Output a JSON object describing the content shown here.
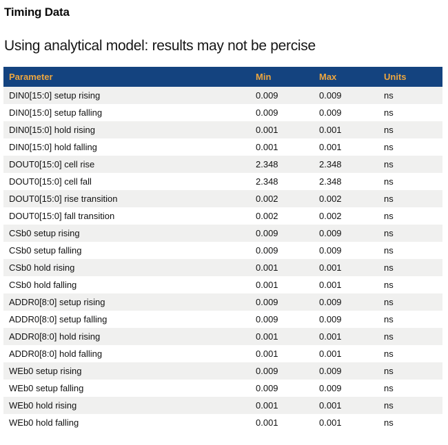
{
  "page": {
    "title": "Timing Data",
    "subtitle": "Using analytical model: results may not be percise"
  },
  "table": {
    "columns": [
      "Parameter",
      "Min",
      "Max",
      "Units"
    ],
    "rows": [
      {
        "parameter": "DIN0[15:0] setup rising",
        "min": "0.009",
        "max": "0.009",
        "units": "ns"
      },
      {
        "parameter": "DIN0[15:0] setup falling",
        "min": "0.009",
        "max": "0.009",
        "units": "ns"
      },
      {
        "parameter": "DIN0[15:0] hold rising",
        "min": "0.001",
        "max": "0.001",
        "units": "ns"
      },
      {
        "parameter": "DIN0[15:0] hold falling",
        "min": "0.001",
        "max": "0.001",
        "units": "ns"
      },
      {
        "parameter": "DOUT0[15:0] cell rise",
        "min": "2.348",
        "max": "2.348",
        "units": "ns"
      },
      {
        "parameter": "DOUT0[15:0] cell fall",
        "min": "2.348",
        "max": "2.348",
        "units": "ns"
      },
      {
        "parameter": "DOUT0[15:0] rise transition",
        "min": "0.002",
        "max": "0.002",
        "units": "ns"
      },
      {
        "parameter": "DOUT0[15:0] fall transition",
        "min": "0.002",
        "max": "0.002",
        "units": "ns"
      },
      {
        "parameter": "CSb0 setup rising",
        "min": "0.009",
        "max": "0.009",
        "units": "ns"
      },
      {
        "parameter": "CSb0 setup falling",
        "min": "0.009",
        "max": "0.009",
        "units": "ns"
      },
      {
        "parameter": "CSb0 hold rising",
        "min": "0.001",
        "max": "0.001",
        "units": "ns"
      },
      {
        "parameter": "CSb0 hold falling",
        "min": "0.001",
        "max": "0.001",
        "units": "ns"
      },
      {
        "parameter": "ADDR0[8:0] setup rising",
        "min": "0.009",
        "max": "0.009",
        "units": "ns"
      },
      {
        "parameter": "ADDR0[8:0] setup falling",
        "min": "0.009",
        "max": "0.009",
        "units": "ns"
      },
      {
        "parameter": "ADDR0[8:0] hold rising",
        "min": "0.001",
        "max": "0.001",
        "units": "ns"
      },
      {
        "parameter": "ADDR0[8:0] hold falling",
        "min": "0.001",
        "max": "0.001",
        "units": "ns"
      },
      {
        "parameter": "WEb0 setup rising",
        "min": "0.009",
        "max": "0.009",
        "units": "ns"
      },
      {
        "parameter": "WEb0 setup falling",
        "min": "0.009",
        "max": "0.009",
        "units": "ns"
      },
      {
        "parameter": "WEb0 hold rising",
        "min": "0.001",
        "max": "0.001",
        "units": "ns"
      },
      {
        "parameter": "WEb0 hold falling",
        "min": "0.001",
        "max": "0.001",
        "units": "ns"
      }
    ]
  },
  "colors": {
    "header_bg": "#14437f",
    "header_text": "#eda63f",
    "row_alt_bg": "#f0f0ef",
    "row_bg": "#ffffff",
    "body_text": "#111111"
  }
}
